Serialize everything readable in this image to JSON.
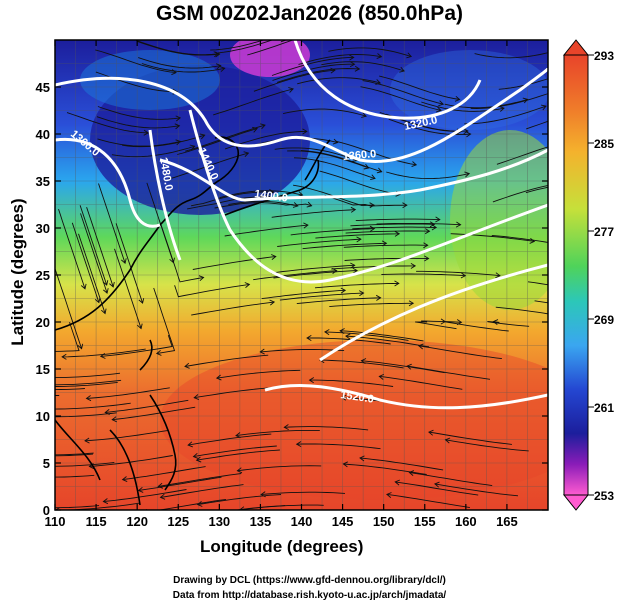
{
  "title": "GSM 00Z02Jan2026 (850.0hPa)",
  "axes": {
    "xlabel": "Longitude (degrees)",
    "ylabel": "Latitude  (degrees)",
    "x_ticks": [
      "110",
      "115",
      "120",
      "125",
      "130",
      "135",
      "140",
      "145",
      "150",
      "155",
      "160",
      "165"
    ],
    "y_ticks": [
      "0",
      "5",
      "10",
      "15",
      "20",
      "25",
      "30",
      "35",
      "40",
      "45"
    ]
  },
  "colorbar": {
    "ticks": [
      "293",
      "285",
      "277",
      "269",
      "261",
      "253"
    ],
    "colors": [
      "#e8442a",
      "#f29a2a",
      "#f5d23a",
      "#6fd34a",
      "#2fc6b0",
      "#3aa6f0",
      "#2a4fd8",
      "#1c1e9c",
      "#9a1cb8",
      "#ff5cd0"
    ]
  },
  "contours": [
    {
      "label": "1320.0"
    },
    {
      "label": "1360.0"
    },
    {
      "label": "1360.0"
    },
    {
      "label": "1400.0"
    },
    {
      "label": "1440.0"
    },
    {
      "label": "1480.0"
    },
    {
      "label": "1520.0"
    }
  ],
  "credits": {
    "line1": "Drawing by DCL (https://www.gfd-dennou.org/library/dcl/)",
    "line2": "Data from http://database.rish.kyoto-u.ac.jp/arch/jmadata/"
  }
}
